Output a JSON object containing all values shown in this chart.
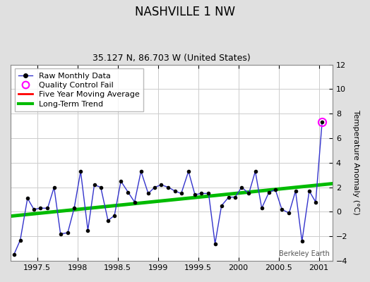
{
  "title": "NASHVILLE 1 NW",
  "subtitle": "35.127 N, 86.703 W (United States)",
  "ylabel": "Temperature Anomaly (°C)",
  "watermark": "Berkeley Earth",
  "xlim": [
    1997.17,
    2001.17
  ],
  "ylim": [
    -4,
    12
  ],
  "yticks": [
    -4,
    -2,
    0,
    2,
    4,
    6,
    8,
    10,
    12
  ],
  "xticks": [
    1997.5,
    1998.0,
    1998.5,
    1999.0,
    1999.5,
    2000.0,
    2000.5,
    2001.0
  ],
  "xticklabels": [
    "1997.5",
    "1998",
    "1998.5",
    "1999",
    "1999.5",
    "2000",
    "2000.5",
    "2001"
  ],
  "raw_x": [
    1997.21,
    1997.29,
    1997.38,
    1997.46,
    1997.54,
    1997.63,
    1997.71,
    1997.79,
    1997.88,
    1997.96,
    1998.04,
    1998.13,
    1998.21,
    1998.29,
    1998.38,
    1998.46,
    1998.54,
    1998.63,
    1998.71,
    1998.79,
    1998.88,
    1998.96,
    1999.04,
    1999.13,
    1999.21,
    1999.29,
    1999.38,
    1999.46,
    1999.54,
    1999.63,
    1999.71,
    1999.79,
    1999.88,
    1999.96,
    2000.04,
    2000.13,
    2000.21,
    2000.29,
    2000.38,
    2000.46,
    2000.54,
    2000.63,
    2000.71,
    2000.79,
    2000.88,
    2000.96,
    2001.04
  ],
  "raw_y": [
    -3.5,
    -2.3,
    1.1,
    0.2,
    0.3,
    0.3,
    2.0,
    -1.8,
    -1.7,
    0.3,
    3.3,
    -1.5,
    2.2,
    2.0,
    -0.7,
    -0.3,
    2.5,
    1.6,
    0.8,
    3.3,
    1.5,
    2.0,
    2.2,
    2.0,
    1.7,
    1.5,
    3.3,
    1.4,
    1.5,
    1.5,
    -2.6,
    0.5,
    1.2,
    1.2,
    2.0,
    1.5,
    3.3,
    0.3,
    1.6,
    1.8,
    0.2,
    -0.1,
    1.7,
    -2.4,
    1.7,
    0.8,
    7.3
  ],
  "qc_fail_x": [
    2001.04
  ],
  "qc_fail_y": [
    7.3
  ],
  "trend_x": [
    1997.17,
    2001.17
  ],
  "trend_y": [
    -0.35,
    2.3
  ],
  "raw_line_color": "#3333cc",
  "trend_color": "#00bb00",
  "moving_avg_color": "#ff0000",
  "qc_fail_color": "#ff00ff",
  "bg_color": "#e0e0e0",
  "plot_bg_color": "#ffffff",
  "grid_color": "#cccccc",
  "title_fontsize": 12,
  "subtitle_fontsize": 9,
  "tick_fontsize": 8,
  "legend_fontsize": 8
}
